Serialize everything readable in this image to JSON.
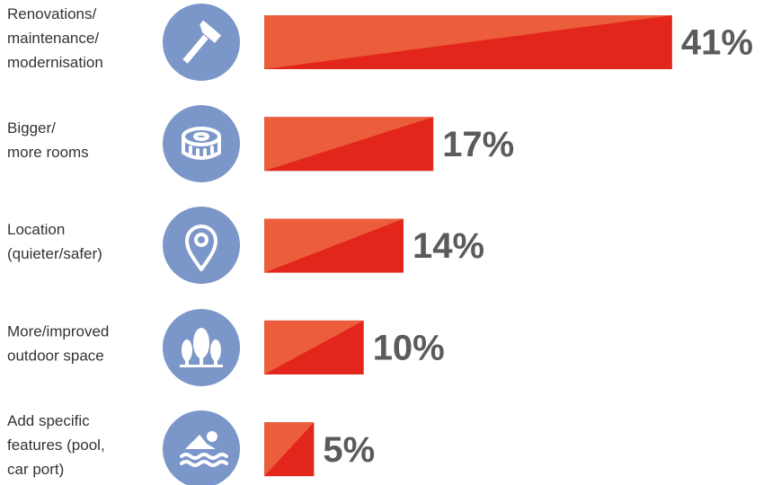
{
  "chart_data": {
    "type": "bar",
    "categories": [
      "Renovations/\nmaintenance/\nmodernisation",
      "Bigger/\nmore rooms",
      "Location\n(quieter/safer)",
      "More/improved\noutdoor space",
      "Add specific\nfeatures (pool,\ncar port)"
    ],
    "values": [
      41,
      17,
      14,
      10,
      5
    ],
    "value_labels": [
      "41%",
      "17%",
      "14%",
      "10%",
      "5%"
    ],
    "color": "#e3261b",
    "highlight_color": "#ec5d3b",
    "icon_color": "#7b96c8"
  }
}
